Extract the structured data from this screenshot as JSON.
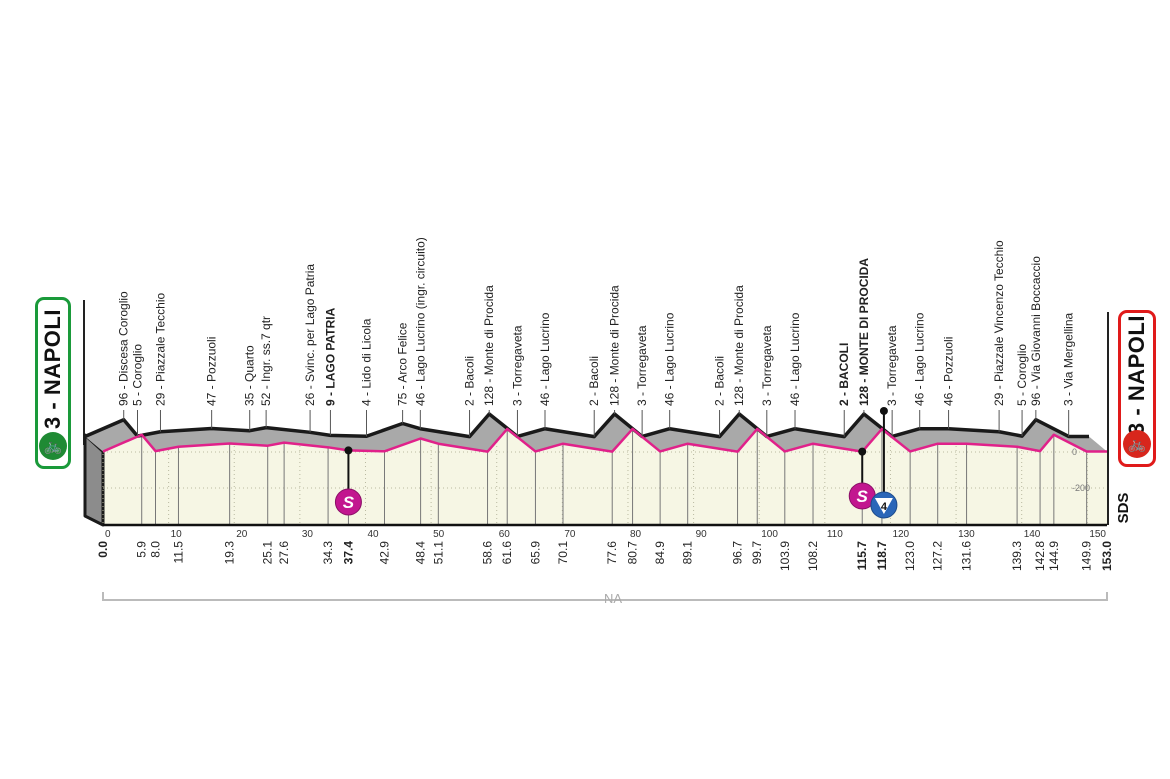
{
  "start": {
    "label": "3 - NAPOLI",
    "color": "#1a9a3a",
    "icon": "cyclist-icon"
  },
  "finish": {
    "label": "3 - NAPOLI",
    "color": "#e01a1a",
    "icon": "cyclist-icon"
  },
  "footer": {
    "bracket_label": "NA",
    "logo": "SDS"
  },
  "colors": {
    "road_line": "#e0218a",
    "profile_top": "#1a1a1a",
    "profile_fill": "#a9a9a9",
    "ground_fill": "#f6f6e4",
    "sprint": "#c2168f",
    "kom": "#2a66b8"
  },
  "chart_data": {
    "type": "area",
    "title": "",
    "xlabel": "",
    "ylabel": "",
    "xlim": [
      0,
      153
    ],
    "x_ticks": [
      0,
      10,
      20,
      30,
      40,
      50,
      60,
      70,
      80,
      90,
      100,
      110,
      120,
      130,
      140,
      150
    ],
    "y_ticks": [
      0,
      -200
    ],
    "grid": "dotted",
    "waypoints": [
      {
        "km": 0.0,
        "alt": 3,
        "name": "Napoli",
        "bold": true,
        "type": "start"
      },
      {
        "km": 5.9,
        "alt": 96,
        "name": "Discesa Coroglio"
      },
      {
        "km": 8.0,
        "alt": 5,
        "name": "Coroglio"
      },
      {
        "km": 11.5,
        "alt": 29,
        "name": "Piazzale Tecchio"
      },
      {
        "km": 19.3,
        "alt": 47,
        "name": "Pozzuoli"
      },
      {
        "km": 25.1,
        "alt": 35,
        "name": "Quarto"
      },
      {
        "km": 27.6,
        "alt": 52,
        "name": "Ingr. ss.7 qtr"
      },
      {
        "km": 34.3,
        "alt": 26,
        "name": "Svinc. per Lago Patria"
      },
      {
        "km": 37.4,
        "alt": 9,
        "name": "LAGO PATRIA",
        "bold": true,
        "type": "sprint"
      },
      {
        "km": 42.9,
        "alt": 4,
        "name": "Lido di Licola"
      },
      {
        "km": 48.4,
        "alt": 75,
        "name": "Arco Felice"
      },
      {
        "km": 51.1,
        "alt": 46,
        "name": "Lago Lucrino (ingr. circuito)"
      },
      {
        "km": 58.6,
        "alt": 2,
        "name": "Bacoli"
      },
      {
        "km": 61.6,
        "alt": 128,
        "name": "Monte di Procida"
      },
      {
        "km": 65.9,
        "alt": 3,
        "name": "Torregaveta"
      },
      {
        "km": 70.1,
        "alt": 46,
        "name": "Lago Lucrino"
      },
      {
        "km": 77.6,
        "alt": 2,
        "name": "Bacoli"
      },
      {
        "km": 80.7,
        "alt": 128,
        "name": "Monte di Procida"
      },
      {
        "km": 84.9,
        "alt": 3,
        "name": "Torregaveta"
      },
      {
        "km": 89.1,
        "alt": 46,
        "name": "Lago Lucrino"
      },
      {
        "km": 96.7,
        "alt": 2,
        "name": "Bacoli"
      },
      {
        "km": 99.7,
        "alt": 128,
        "name": "Monte di Procida"
      },
      {
        "km": 103.9,
        "alt": 3,
        "name": "Torregaveta"
      },
      {
        "km": 108.2,
        "alt": 46,
        "name": "Lago Lucrino"
      },
      {
        "km": 115.7,
        "alt": 2,
        "name": "BACOLI",
        "bold": true,
        "type": "sprint"
      },
      {
        "km": 118.7,
        "alt": 128,
        "name": "MONTE DI PROCIDA",
        "bold": true,
        "type": "kom",
        "kom_category": "4"
      },
      {
        "km": 123.0,
        "alt": 3,
        "name": "Torregaveta"
      },
      {
        "km": 127.2,
        "alt": 46,
        "name": "Lago Lucrino"
      },
      {
        "km": 131.6,
        "alt": 46,
        "name": "Pozzuoli"
      },
      {
        "km": 139.3,
        "alt": 29,
        "name": "Piazzale Vincenzo Tecchio"
      },
      {
        "km": 142.8,
        "alt": 5,
        "name": "Coroglio"
      },
      {
        "km": 144.9,
        "alt": 96,
        "name": "Via Giovanni Boccaccio"
      },
      {
        "km": 149.9,
        "alt": 3,
        "name": "Via Mergellina"
      },
      {
        "km": 153.0,
        "alt": 3,
        "name": "Napoli",
        "bold": true,
        "type": "finish"
      }
    ],
    "sprint_symbol": "S"
  }
}
